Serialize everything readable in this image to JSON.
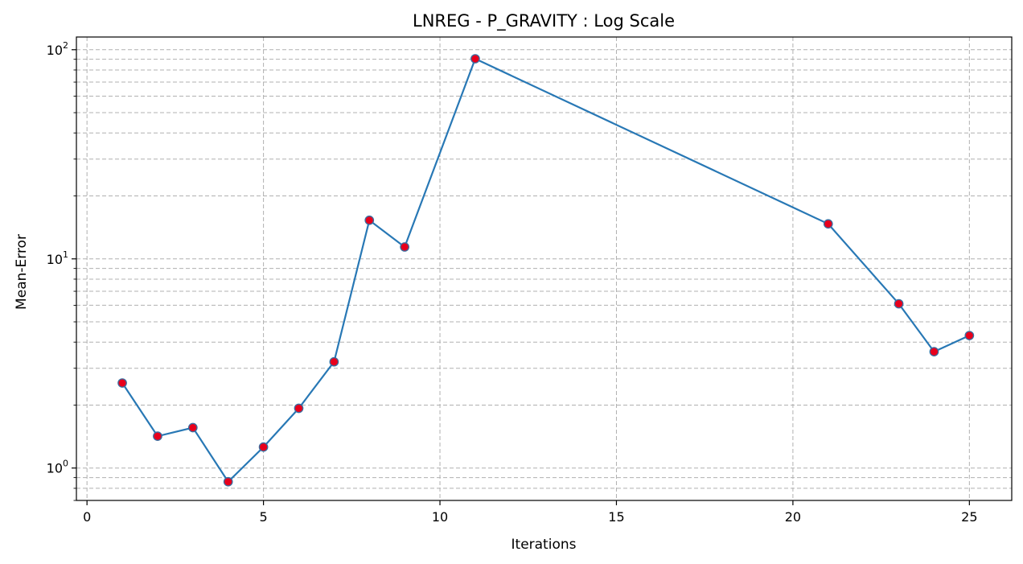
{
  "chart_data": {
    "type": "line",
    "title": "LNREG - P_GRAVITY : Log Scale",
    "xlabel": "Iterations",
    "ylabel": "Mean-Error",
    "yscale": "log",
    "xlim": [
      -0.3,
      26.2
    ],
    "ylim": [
      0.7,
      115
    ],
    "grid": "both",
    "x_ticks": [
      0,
      5,
      10,
      15,
      20,
      25
    ],
    "y_ticks": [
      {
        "value": 1,
        "base": "10",
        "exp": "0"
      },
      {
        "value": 10,
        "base": "10",
        "exp": "1"
      },
      {
        "value": 100,
        "base": "10",
        "exp": "2"
      }
    ],
    "line_color": "#2878b5",
    "marker_color": "#e8001c",
    "series": [
      {
        "x": [
          1,
          2,
          3,
          4,
          5,
          6,
          7,
          8,
          9,
          11,
          21,
          23,
          24,
          25
        ],
        "y": [
          2.55,
          1.42,
          1.56,
          0.86,
          1.26,
          1.93,
          3.22,
          15.3,
          11.4,
          90.5,
          14.7,
          6.1,
          3.6,
          4.3
        ]
      }
    ]
  }
}
